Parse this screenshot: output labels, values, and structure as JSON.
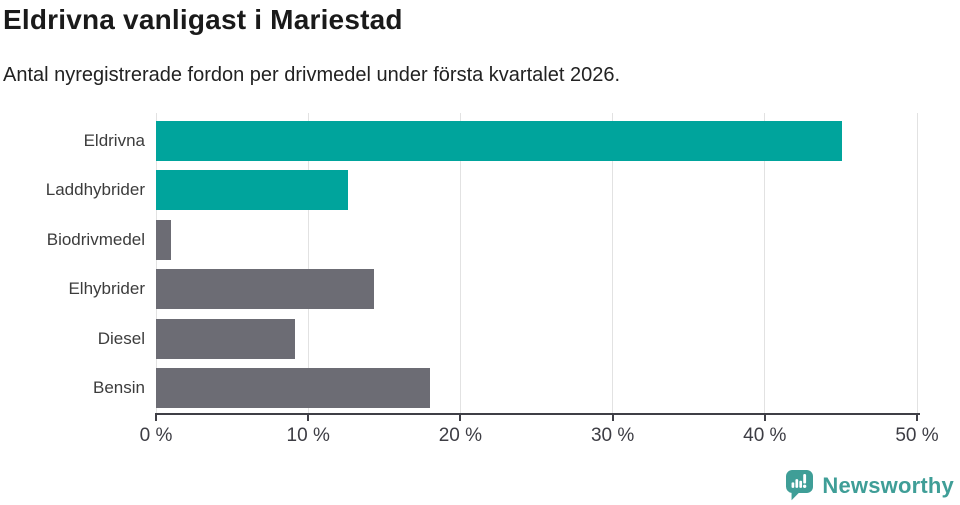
{
  "header": {
    "title": "Eldrivna vanligast i Mariestad",
    "subtitle": "Antal nyregistrerade fordon per drivmedel under första kvartalet 2026."
  },
  "chart_data": {
    "type": "bar",
    "orientation": "horizontal",
    "title": "Eldrivna vanligast i Mariestad",
    "subtitle": "Antal nyregistrerade fordon per drivmedel under första kvartalet 2026.",
    "categories": [
      "Eldrivna",
      "Laddhybrider",
      "Biodrivmedel",
      "Elhybrider",
      "Diesel",
      "Bensin"
    ],
    "values": [
      45.1,
      12.6,
      1.0,
      14.3,
      9.1,
      18.0
    ],
    "unit": "%",
    "xlabel": "",
    "ylabel": "",
    "xlim": [
      0,
      50
    ],
    "x_ticks": [
      0,
      10,
      20,
      30,
      40,
      50
    ],
    "x_tick_labels": [
      "0 %",
      "10 %",
      "20 %",
      "30 %",
      "40 %",
      "50 %"
    ],
    "grid": true,
    "legend_position": "none",
    "bar_colors": [
      "#00a49c",
      "#00a49c",
      "#6c6c74",
      "#6c6c74",
      "#6c6c74",
      "#6c6c74"
    ]
  },
  "colors": {
    "accent_teal": "#00a49c",
    "neutral_gray": "#6c6c74",
    "gridline": "#e2e2e2",
    "axis": "#3f3f46",
    "title_text": "#1a1a1a",
    "subtitle_text": "#222222",
    "label_text": "#3c3c3c",
    "brand_teal": "#3f9e97",
    "background": "#ffffff"
  },
  "footer": {
    "brand": "Newsworthy",
    "logo_icon": "bar-chart-speech-bubble-icon"
  }
}
